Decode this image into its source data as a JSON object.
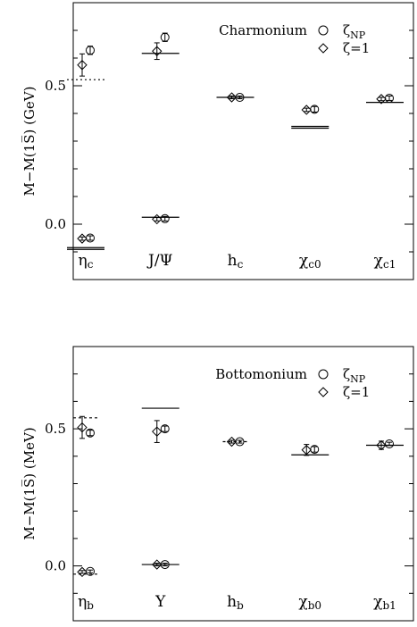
{
  "chart_data": [
    {
      "type": "scatter",
      "title": "Charmonium",
      "ylabel": "M−M(1S̅)  (GeV)",
      "ylim": [
        -0.2,
        0.8
      ],
      "yticks": [
        0.0,
        0.5
      ],
      "ytick_labels": [
        "0.0",
        "0.5"
      ],
      "categories": [
        "ηc",
        "J/Ψ",
        "hc",
        "χc0",
        "χc1"
      ],
      "category_labels": [
        {
          "main": "η",
          "sub": "c"
        },
        {
          "main": "J/Ψ",
          "sub": ""
        },
        {
          "main": "h",
          "sub": "c"
        },
        {
          "main": "χ",
          "sub": "c0"
        },
        {
          "main": "χ",
          "sub": "c1"
        }
      ],
      "legend": [
        {
          "symbol": "circle",
          "main": "ζ",
          "sub": "NP"
        },
        {
          "symbol": "diamond",
          "main": "ζ=1",
          "sub": ""
        }
      ],
      "series": [
        {
          "name": "ζNP",
          "marker": "circle",
          "values": [
            0.628,
            0.675,
            0.458,
            0.415,
            0.455
          ],
          "errors": [
            0.015,
            0.015,
            0.005,
            0.01,
            0.008
          ]
        },
        {
          "name": "ζ=1",
          "marker": "diamond",
          "values": [
            0.575,
            0.625,
            0.458,
            0.413,
            0.452
          ],
          "errors": [
            0.04,
            0.03,
            0.005,
            0.006,
            0.006
          ]
        },
        {
          "name": "ζNP",
          "marker": "circle",
          "values": [
            -0.05,
            0.02,
            null,
            null,
            null
          ],
          "errors": [
            0.008,
            0.008,
            null,
            null,
            null
          ]
        },
        {
          "name": "ζ=1",
          "marker": "diamond",
          "values": [
            -0.052,
            0.018,
            null,
            null,
            null
          ],
          "errors": [
            0.006,
            0.006,
            null,
            null,
            null
          ]
        }
      ],
      "reference_lines": [
        {
          "category": 0,
          "value": 0.522,
          "style": "dotted"
        },
        {
          "category": 0,
          "value": -0.088,
          "style": "double"
        },
        {
          "category": 1,
          "value": 0.617,
          "style": "solid"
        },
        {
          "category": 1,
          "value": 0.025,
          "style": "solid"
        },
        {
          "category": 2,
          "value": 0.458,
          "style": "solid"
        },
        {
          "category": 3,
          "value": 0.35,
          "style": "double"
        },
        {
          "category": 4,
          "value": 0.44,
          "style": "solid"
        }
      ]
    },
    {
      "type": "scatter",
      "title": "Bottomonium",
      "ylabel": "M−M(1S̅)  (MeV)",
      "ylim": [
        -0.2,
        0.8
      ],
      "yticks": [
        0.0,
        0.5
      ],
      "ytick_labels": [
        "0.0",
        "0.5"
      ],
      "categories": [
        "ηb",
        "Υ",
        "hb",
        "χb0",
        "χb1"
      ],
      "category_labels": [
        {
          "main": "η",
          "sub": "b"
        },
        {
          "main": "Υ",
          "sub": ""
        },
        {
          "main": "h",
          "sub": "b"
        },
        {
          "main": "χ",
          "sub": "b0"
        },
        {
          "main": "χ",
          "sub": "b1"
        }
      ],
      "legend": [
        {
          "symbol": "circle",
          "main": "ζ",
          "sub": "NP"
        },
        {
          "symbol": "diamond",
          "main": "ζ=1",
          "sub": ""
        }
      ],
      "series": [
        {
          "name": "ζNP",
          "marker": "circle",
          "values": [
            0.485,
            0.5,
            0.453,
            0.425,
            0.445
          ],
          "errors": [
            0.01,
            0.01,
            0.005,
            0.01,
            0.006
          ]
        },
        {
          "name": "ζ=1",
          "marker": "diamond",
          "values": [
            0.505,
            0.49,
            0.453,
            0.423,
            0.44
          ],
          "errors": [
            0.04,
            0.04,
            0.005,
            0.02,
            0.015
          ]
        },
        {
          "name": "ζNP",
          "marker": "circle",
          "values": [
            -0.02,
            0.005,
            null,
            null,
            null
          ],
          "errors": [
            0.005,
            0.005,
            null,
            null,
            null
          ]
        },
        {
          "name": "ζ=1",
          "marker": "diamond",
          "values": [
            -0.022,
            0.005,
            null,
            null,
            null
          ],
          "errors": [
            0.005,
            0.005,
            null,
            null,
            null
          ]
        }
      ],
      "reference_lines": [
        {
          "category": 0,
          "value": 0.54,
          "style": "dashed"
        },
        {
          "category": 0,
          "value": -0.03,
          "style": "dashed"
        },
        {
          "category": 1,
          "value": 0.575,
          "style": "solid"
        },
        {
          "category": 1,
          "value": 0.005,
          "style": "solid"
        },
        {
          "category": 2,
          "value": 0.453,
          "style": "dashed"
        },
        {
          "category": 3,
          "value": 0.405,
          "style": "solid"
        },
        {
          "category": 4,
          "value": 0.44,
          "style": "solid"
        }
      ]
    }
  ]
}
